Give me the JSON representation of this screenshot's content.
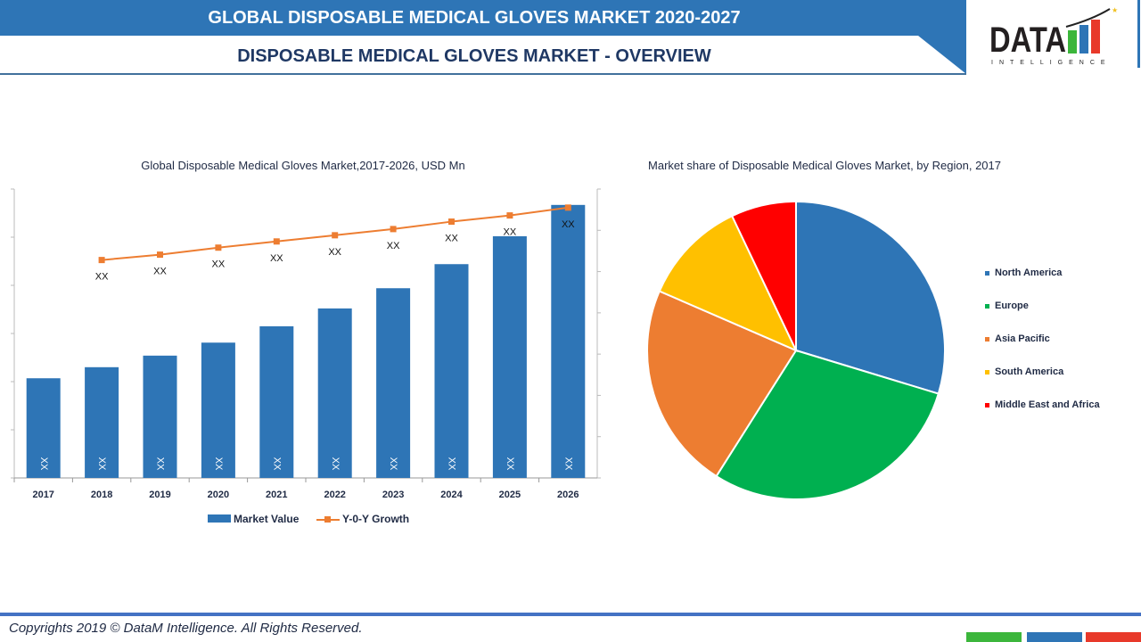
{
  "header": {
    "title": "GLOBAL DISPOSABLE MEDICAL GLOVES MARKET   2020-2027",
    "subtitle": "DISPOSABLE MEDICAL GLOVES MARKET   - OVERVIEW"
  },
  "logo": {
    "text": "DATA",
    "subtext": "INTELLIGENCE"
  },
  "colors": {
    "header": "#2E75B6",
    "bar": "#2E75B6",
    "line": "#ED7D31"
  },
  "chart_data": [
    {
      "type": "bar",
      "title": "Global Disposable Medical Gloves Market,2017-2026, USD Mn",
      "categories": [
        "2017",
        "2018",
        "2019",
        "2020",
        "2021",
        "2022",
        "2023",
        "2024",
        "2025",
        "2026"
      ],
      "ylim": [
        0,
        6
      ],
      "y2lim": [
        0,
        7
      ],
      "legend": "bottom",
      "grid": false,
      "series": [
        {
          "name": "Market Value",
          "type": "bar",
          "values": [
            2.07,
            2.3,
            2.54,
            2.81,
            3.15,
            3.52,
            3.94,
            4.44,
            5.02,
            5.67
          ],
          "labels": [
            "XX",
            "XX",
            "XX",
            "XX",
            "XX",
            "XX",
            "XX",
            "XX",
            "XX",
            "XX"
          ]
        },
        {
          "name": "Y-0-Y Growth",
          "type": "line",
          "values": [
            null,
            5.28,
            5.41,
            5.58,
            5.73,
            5.88,
            6.03,
            6.21,
            6.36,
            6.55
          ],
          "labels": [
            "",
            "XX",
            "XX",
            "XX",
            "XX",
            "XX",
            "XX",
            "XX",
            "XX",
            "XX"
          ]
        }
      ]
    },
    {
      "type": "pie",
      "title": "Market share of Disposable Medical Gloves Market, by Region, 2017",
      "legend": "right",
      "categories": [
        "North America",
        "Europe",
        "Asia Pacific",
        "South America",
        "Middle East and Africa"
      ],
      "values": [
        29.4,
        29.0,
        22.3,
        11.3,
        7.0
      ],
      "colors": [
        "#2E75B6",
        "#00B050",
        "#ED7D31",
        "#FFC000",
        "#FF0000"
      ]
    }
  ],
  "footer": {
    "copyright": "Copyrights 2019 © DataM Intelligence. All Rights Reserved."
  }
}
